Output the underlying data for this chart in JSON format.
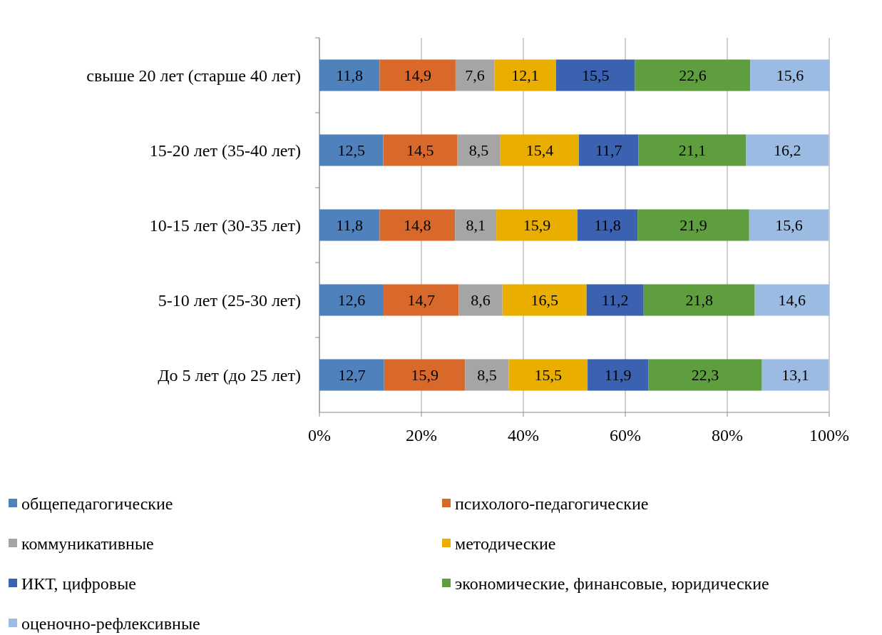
{
  "chart_data": {
    "type": "bar",
    "orientation": "horizontal",
    "stacked": true,
    "categories": [
      "свыше 20 лет (старше 40 лет)",
      "15-20 лет (35-40 лет)",
      "10-15 лет (30-35 лет)",
      "5-10 лет (25-30 лет)",
      "До 5 лет (до 25 лет)"
    ],
    "series": [
      {
        "name": "общепедагогические",
        "color": "#4f81bd",
        "values": [
          11.8,
          12.5,
          11.8,
          12.6,
          12.7
        ],
        "value_labels": [
          "11,8",
          "12,5",
          "11,8",
          "12,6",
          "12,7"
        ]
      },
      {
        "name": "психолого-педагогические",
        "color": "#d9692b",
        "values": [
          14.9,
          14.5,
          14.8,
          14.7,
          15.9
        ],
        "value_labels": [
          "14,9",
          "14,5",
          "14,8",
          "14,7",
          "15,9"
        ]
      },
      {
        "name": "коммуникативные",
        "color": "#a5a5a5",
        "values": [
          7.6,
          8.5,
          8.1,
          8.6,
          8.5
        ],
        "value_labels": [
          "7,6",
          "8,5",
          "8,1",
          "8,6",
          "8,5"
        ]
      },
      {
        "name": "методические",
        "color": "#eaae00",
        "values": [
          12.1,
          15.4,
          15.9,
          16.5,
          15.5
        ],
        "value_labels": [
          "12,1",
          "15,4",
          "15,9",
          "16,5",
          "15,5"
        ]
      },
      {
        "name": "ИКТ, цифровые",
        "color": "#3a62b0",
        "values": [
          15.5,
          11.7,
          11.8,
          11.2,
          11.9
        ],
        "value_labels": [
          "15,5",
          "11,7",
          "11,8",
          "11,2",
          "11,9"
        ]
      },
      {
        "name": "экономические, финансовые, юридические",
        "color": "#5e9e3e",
        "values": [
          22.6,
          21.1,
          21.9,
          21.8,
          22.3
        ],
        "value_labels": [
          "22,6",
          "21,1",
          "21,9",
          "21,8",
          "22,3"
        ]
      },
      {
        "name": "оценочно-рефлексивные",
        "color": "#9bbbe3",
        "values": [
          15.6,
          16.2,
          15.6,
          14.6,
          13.1
        ],
        "value_labels": [
          "15,6",
          "16,2",
          "15,6",
          "14,6",
          "13,1"
        ]
      }
    ],
    "xlim": [
      0,
      100
    ],
    "xticks": [
      {
        "value": 0,
        "label": "0%"
      },
      {
        "value": 20,
        "label": "20%"
      },
      {
        "value": 40,
        "label": "40%"
      },
      {
        "value": 60,
        "label": "60%"
      },
      {
        "value": 80,
        "label": "80%"
      },
      {
        "value": 100,
        "label": "100%"
      }
    ],
    "grid": "x",
    "legend": "bottom"
  }
}
